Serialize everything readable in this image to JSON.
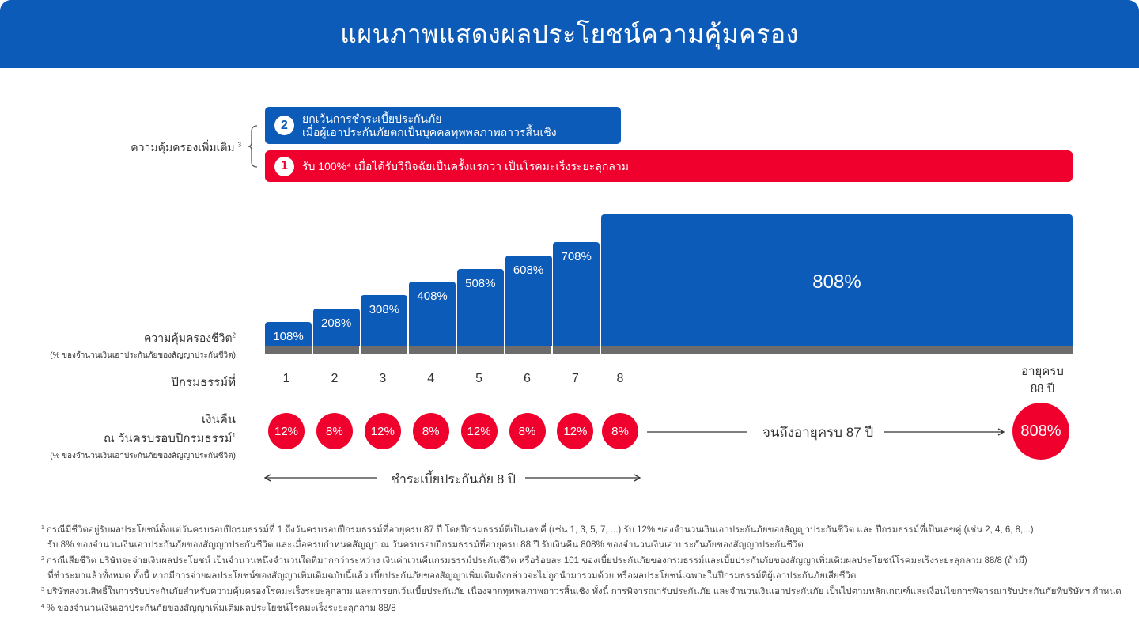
{
  "title": "แผนภาพแสดงผลประโยชน์ความคุ้มครอง",
  "additional_coverage": {
    "label": "ความคุ้มครองเพิ่มเติม",
    "label_sup": "3",
    "items": [
      {
        "number": "2",
        "lines": [
          "ยกเว้นการชำระเบี้ยประกันภัย",
          "เมื่อผู้เอาประกันภัยตกเป็นบุคคลทุพพลภาพถาวรสิ้นเชิง"
        ]
      },
      {
        "number": "1",
        "text": "รับ 100%⁴ เมื่อได้รับวินิจฉัยเป็นครั้งแรกว่า เป็นโรคมะเร็งระยะลุกลาม"
      }
    ]
  },
  "life_coverage": {
    "label": "ความคุ้มครองชีวิต",
    "label_sup": "2",
    "sub": "(% ของจำนวนเงินเอาประกันภัยของสัญญาประกันชีวิต)"
  },
  "policy_year": {
    "label": "ปีกรมธรรม์ที่",
    "end_label_line1": "อายุครบ",
    "end_label_line2": "88 ปี"
  },
  "cash_back": {
    "label_line1": "เงินคืน",
    "label_line2": "ณ วันครบรอบปีกรมธรรม์",
    "label_sup": "1",
    "sub": "(% ของจำนวนเงินเอาประกันภัยของสัญญาประกันชีวิต)",
    "until_text": "จนถึงอายุครบ 87 ปี",
    "final_value": "808%"
  },
  "payment_text": "ชำระเบี้ยประกันภัย 8 ปี",
  "chart_data": {
    "type": "bar",
    "categories": [
      "1",
      "2",
      "3",
      "4",
      "5",
      "6",
      "7",
      "8"
    ],
    "values": [
      108,
      208,
      308,
      408,
      508,
      608,
      708,
      808
    ],
    "value_labels": [
      "108%",
      "208%",
      "308%",
      "408%",
      "508%",
      "608%",
      "708%",
      "808%"
    ],
    "cash_back_labels": [
      "12%",
      "8%",
      "12%",
      "8%",
      "12%",
      "8%",
      "12%",
      "8%"
    ],
    "xlabel": "ปีกรมธรรม์ที่",
    "ylabel": "ความคุ้มครองชีวิต"
  },
  "footnotes": [
    {
      "sup": "1",
      "lines": [
        "กรณีมีชีวิตอยู่รับผลประโยชน์ตั้งแต่วันครบรอบปีกรมธรรม์ที่ 1 ถึงวันครบรอบปีกรมธรรม์ที่อายุครบ 87 ปี โดยปีกรมธรรม์ที่เป็นเลขคี่ (เช่น 1, 3, 5, 7, ...) รับ 12% ของจำนวนเงินเอาประกันภัยของสัญญาประกันชีวิต และ ปีกรมธรรม์ที่เป็นเลขคู่ (เช่น 2, 4, 6, 8,...)",
        "รับ 8% ของจำนวนเงินเอาประกันภัยของสัญญาประกันชีวิต และเมื่อครบกำหนดสัญญา ณ วันครบรอบปีกรมธรรม์ที่อายุครบ 88 ปี รับเงินคืน 808% ของจำนวนเงินเอาประกันภัยของสัญญาประกันชีวิต"
      ]
    },
    {
      "sup": "2",
      "lines": [
        "กรณีเสียชีวิต บริษัทจะจ่ายเงินผลประโยชน์ เป็นจำนวนหนึ่งจำนวนใดที่มากกว่าระหว่าง เงินค่าเวนคืนกรมธรรม์ประกันชีวิต หรือร้อยละ 101 ของเบี้ยประกันภัยของกรมธรรม์และเบี้ยประกันภัยของสัญญาเพิ่มเติมผลประโยชน์โรคมะเร็งระยะลุกลาม 88/8 (ถ้ามี)",
        "ที่ชำระมาแล้วทั้งหมด ทั้งนี้ หากมีการจ่ายผลประโยชน์ของสัญญาเพิ่มเติมฉบับนี้แล้ว เบี้ยประกันภัยของสัญญาเพิ่มเติมดังกล่าวจะไม่ถูกนำมารวมด้วย หรือผลประโยชน์เฉพาะในปีกรมธรรม์ที่ผู้เอาประกันภัยเสียชีวิต"
      ]
    },
    {
      "sup": "3",
      "lines": [
        "บริษัทสงวนสิทธิ์ในการรับประกันภัยสำหรับความคุ้มครองโรคมะเร็งระยะลุกลาม และการยกเว้นเบี้ยประกันภัย เนื่องจากทุพพลภาพถาวรสิ้นเชิง ทั้งนี้ การพิจารณารับประกันภัย และจำนวนเงินเอาประกันภัย เป็นไปตามหลักเกณฑ์และเงื่อนไขการพิจารณารับประกันภัยที่บริษัทฯ กำหนด"
      ]
    },
    {
      "sup": "4",
      "lines": [
        "% ของจำนวนเงินเอาประกันภัยของสัญญาเพิ่มเติมผลประโยชน์โรคมะเร็งระยะลุกลาม 88/8"
      ]
    }
  ],
  "colors": {
    "blue": "#0d5bb8",
    "red": "#f0002c",
    "baseline": "#6c6c6c"
  }
}
